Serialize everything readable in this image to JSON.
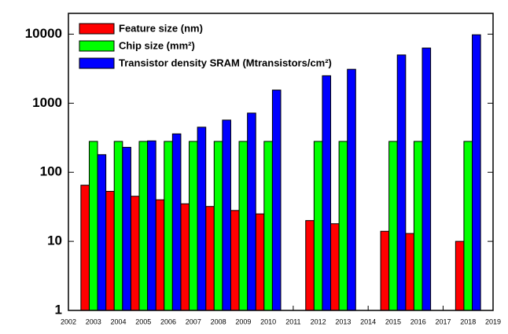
{
  "chart_data": {
    "type": "bar",
    "log_scale_y": true,
    "legend": "top-left",
    "x": [
      2003,
      2004,
      2005,
      2006,
      2007,
      2008,
      2009,
      2010,
      2012,
      2013,
      2015,
      2016,
      2018
    ],
    "series": [
      {
        "name": "Feature size (nm)",
        "color": "#ff0000",
        "values": [
          65,
          53,
          45,
          40,
          35,
          32,
          28,
          25,
          20,
          18,
          14,
          13,
          10
        ]
      },
      {
        "name": "Chip size (mm²)",
        "color": "#00ff00",
        "values": [
          280,
          280,
          280,
          280,
          280,
          280,
          280,
          280,
          280,
          280,
          280,
          280,
          280
        ]
      },
      {
        "name": "Transistor density SRAM (Mtransistors/cm²)",
        "color": "#0000ff",
        "values": [
          180,
          230,
          285,
          360,
          450,
          570,
          720,
          1550,
          2500,
          3100,
          5000,
          6300,
          9800
        ]
      }
    ],
    "xlim": [
      2002,
      2019
    ],
    "xticks": [
      2002,
      2003,
      2004,
      2005,
      2006,
      2007,
      2008,
      2009,
      2010,
      2011,
      2012,
      2013,
      2014,
      2015,
      2016,
      2017,
      2018,
      2019
    ],
    "ylim": [
      1,
      20000
    ],
    "yticks": [
      1,
      10,
      100,
      1000,
      10000
    ]
  }
}
